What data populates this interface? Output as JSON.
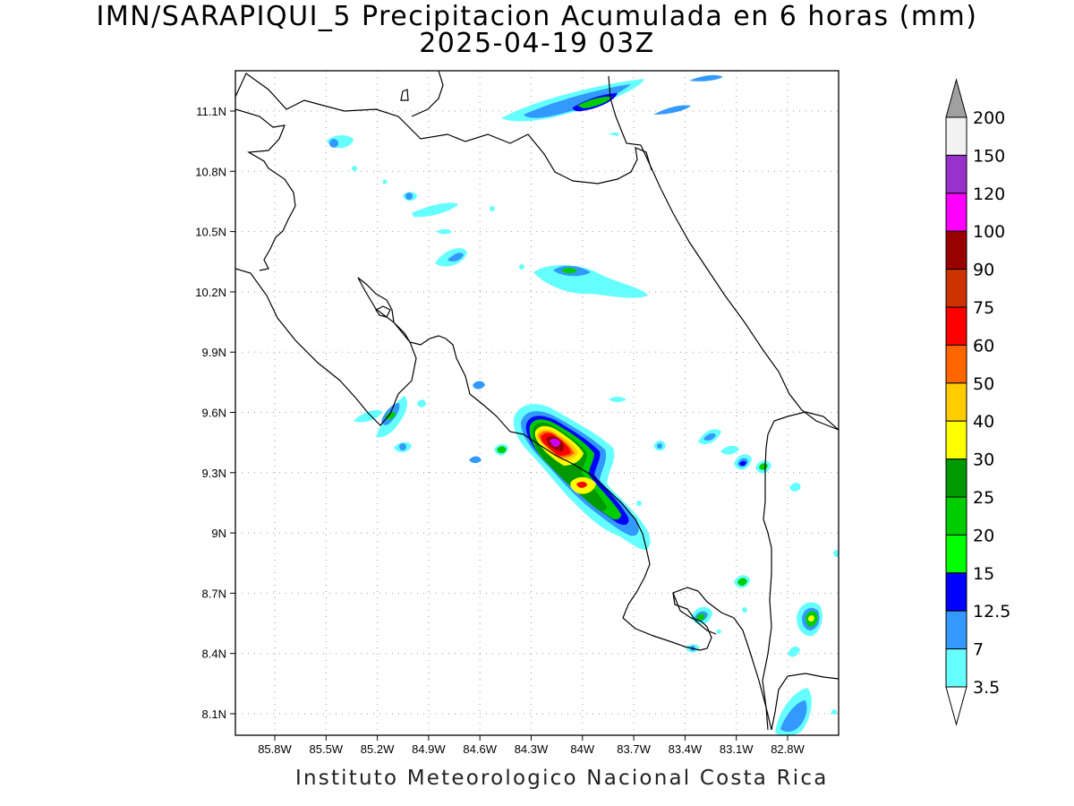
{
  "title": {
    "line1": "IMN/SARAPIQUI_5 Precipitacion Acumulada en 6 horas (mm)",
    "line2": "2025-04-19 03Z"
  },
  "footer": "Instituto Meteorologico Nacional Costa Rica",
  "axes": {
    "lon_ticks": [
      "85.8W",
      "85.5W",
      "85.2W",
      "84.9W",
      "84.6W",
      "84.3W",
      "84W",
      "83.7W",
      "83.4W",
      "83.1W",
      "82.8W"
    ],
    "lat_ticks": [
      "11.1N",
      "10.8N",
      "10.5N",
      "10.2N",
      "9.9N",
      "9.6N",
      "9.3N",
      "9N",
      "8.7N",
      "8.4N",
      "8.1N"
    ]
  },
  "colorbar": {
    "levels": [
      "200",
      "150",
      "120",
      "100",
      "90",
      "75",
      "60",
      "50",
      "40",
      "30",
      "25",
      "20",
      "15",
      "12.5",
      "7",
      "3.5"
    ],
    "colors": [
      "#f2f2f2",
      "#9932cc",
      "#ff00ff",
      "#990000",
      "#cc3300",
      "#ff0000",
      "#ff6600",
      "#ffcc00",
      "#ffff00",
      "#009900",
      "#00cc00",
      "#00ff00",
      "#0000ff",
      "#3399ff",
      "#66ffff"
    ],
    "over_color": "#a0a0a0",
    "under_color": "#ffffff"
  }
}
